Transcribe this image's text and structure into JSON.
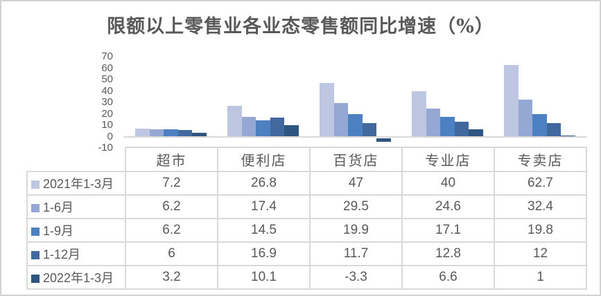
{
  "title": "限额以上零售业各业态零售额同比增速（%）",
  "colors": {
    "series": [
      "#bdc7e1",
      "#95a8d3",
      "#4d80c0",
      "#42699e",
      "#2e5480"
    ],
    "axis_line": "#d9d9d9",
    "table_border": "#d9d9d9",
    "text": "#595959",
    "title_text": "#595959",
    "card_background": "#ffffff",
    "frame_border": "#d2d2d2"
  },
  "chart_data": {
    "type": "bar",
    "title": "限额以上零售业各业态零售额同比增速（%）",
    "categories": [
      "超市",
      "便利店",
      "百货店",
      "专业店",
      "专卖店"
    ],
    "series": [
      {
        "name": "2021年1-3月",
        "values": [
          7.2,
          26.8,
          47,
          40,
          62.7
        ]
      },
      {
        "name": "1-6月",
        "values": [
          6.2,
          17.4,
          29.5,
          24.6,
          32.4
        ]
      },
      {
        "name": "1-9月",
        "values": [
          6.2,
          14.5,
          19.9,
          17.1,
          19.8
        ]
      },
      {
        "name": "1-12月",
        "values": [
          6,
          16.9,
          11.7,
          12.8,
          12
        ]
      },
      {
        "name": "2022年1-3月",
        "values": [
          3.2,
          10.1,
          -3.3,
          6.6,
          1
        ]
      }
    ],
    "yticks": [
      70,
      60,
      50,
      40,
      30,
      20,
      10,
      0,
      -10
    ],
    "ylim": [
      -10,
      70
    ],
    "ytick_step": 10,
    "grid": false,
    "legend_position": "data-table-left-keys",
    "data_table": true
  }
}
